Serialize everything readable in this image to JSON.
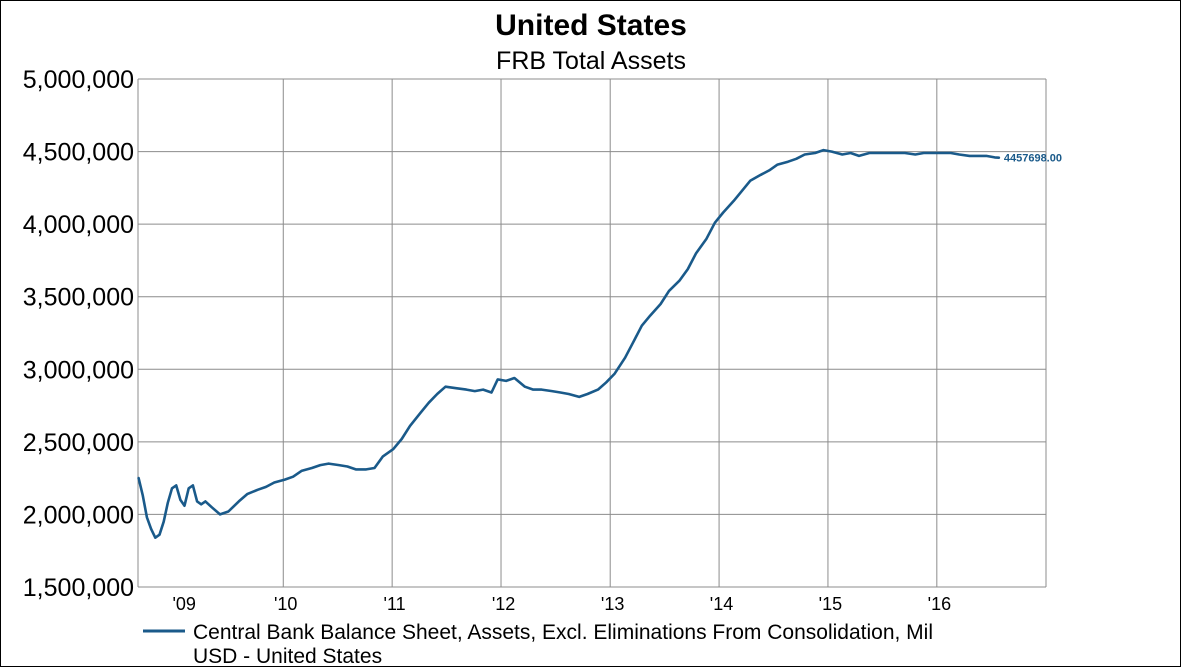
{
  "chart_data": {
    "type": "line",
    "title": "United States",
    "subtitle": "FRB Total Assets",
    "ylim": [
      1500000,
      5000000
    ],
    "y_ticks": [
      "5,000,000",
      "4,500,000",
      "4,000,000",
      "3,500,000",
      "3,000,000",
      "2,500,000",
      "2,000,000",
      "1,500,000"
    ],
    "xlim": [
      "2008-09-01",
      "2017-01-01"
    ],
    "x_ticks": [
      {
        "label": "'09",
        "date": "2009-01-01"
      },
      {
        "label": "'10",
        "date": "2010-01-01"
      },
      {
        "label": "'11",
        "date": "2011-01-01"
      },
      {
        "label": "'12",
        "date": "2012-01-01"
      },
      {
        "label": "'13",
        "date": "2013-01-01"
      },
      {
        "label": "'14",
        "date": "2014-01-01"
      },
      {
        "label": "'15",
        "date": "2015-01-01"
      },
      {
        "label": "'16",
        "date": "2016-01-01"
      }
    ],
    "grid": true,
    "legend_position": "bottom",
    "series": [
      {
        "name": "Central Bank Balance Sheet, Assets, Excl. Eliminations From Consolidation, Mil USD - United States",
        "color": "#1a5a8a",
        "last_value_label": "4457698.00",
        "points": [
          [
            "2008-09-03",
            2250000
          ],
          [
            "2008-09-17",
            2130000
          ],
          [
            "2008-10-01",
            1980000
          ],
          [
            "2008-10-15",
            1900000
          ],
          [
            "2008-10-29",
            1840000
          ],
          [
            "2008-11-12",
            1860000
          ],
          [
            "2008-11-26",
            1950000
          ],
          [
            "2008-12-10",
            2080000
          ],
          [
            "2008-12-24",
            2180000
          ],
          [
            "2009-01-07",
            2200000
          ],
          [
            "2009-01-21",
            2100000
          ],
          [
            "2009-02-04",
            2060000
          ],
          [
            "2009-02-18",
            2180000
          ],
          [
            "2009-03-04",
            2200000
          ],
          [
            "2009-03-18",
            2090000
          ],
          [
            "2009-04-01",
            2070000
          ],
          [
            "2009-04-15",
            2090000
          ],
          [
            "2009-05-06",
            2050000
          ],
          [
            "2009-06-03",
            2000000
          ],
          [
            "2009-07-01",
            2020000
          ],
          [
            "2009-08-05",
            2090000
          ],
          [
            "2009-09-02",
            2140000
          ],
          [
            "2009-10-07",
            2170000
          ],
          [
            "2009-11-04",
            2190000
          ],
          [
            "2009-12-02",
            2220000
          ],
          [
            "2010-01-06",
            2240000
          ],
          [
            "2010-02-03",
            2260000
          ],
          [
            "2010-03-03",
            2300000
          ],
          [
            "2010-04-07",
            2320000
          ],
          [
            "2010-05-05",
            2340000
          ],
          [
            "2010-06-02",
            2350000
          ],
          [
            "2010-07-07",
            2340000
          ],
          [
            "2010-08-04",
            2330000
          ],
          [
            "2010-09-01",
            2310000
          ],
          [
            "2010-10-06",
            2310000
          ],
          [
            "2010-11-03",
            2320000
          ],
          [
            "2010-12-01",
            2400000
          ],
          [
            "2011-01-05",
            2450000
          ],
          [
            "2011-02-02",
            2520000
          ],
          [
            "2011-03-02",
            2610000
          ],
          [
            "2011-04-06",
            2700000
          ],
          [
            "2011-05-04",
            2770000
          ],
          [
            "2011-06-01",
            2830000
          ],
          [
            "2011-06-29",
            2880000
          ],
          [
            "2011-08-03",
            2870000
          ],
          [
            "2011-09-07",
            2860000
          ],
          [
            "2011-10-05",
            2850000
          ],
          [
            "2011-11-02",
            2860000
          ],
          [
            "2011-11-30",
            2840000
          ],
          [
            "2011-12-21",
            2930000
          ],
          [
            "2012-01-18",
            2920000
          ],
          [
            "2012-02-15",
            2940000
          ],
          [
            "2012-03-21",
            2880000
          ],
          [
            "2012-04-18",
            2860000
          ],
          [
            "2012-05-16",
            2860000
          ],
          [
            "2012-06-20",
            2850000
          ],
          [
            "2012-07-18",
            2840000
          ],
          [
            "2012-08-15",
            2830000
          ],
          [
            "2012-09-19",
            2810000
          ],
          [
            "2012-10-17",
            2830000
          ],
          [
            "2012-11-21",
            2860000
          ],
          [
            "2012-12-19",
            2910000
          ],
          [
            "2013-01-16",
            2970000
          ],
          [
            "2013-02-20",
            3080000
          ],
          [
            "2013-03-20",
            3190000
          ],
          [
            "2013-04-17",
            3300000
          ],
          [
            "2013-05-15",
            3370000
          ],
          [
            "2013-06-19",
            3450000
          ],
          [
            "2013-07-17",
            3540000
          ],
          [
            "2013-08-21",
            3610000
          ],
          [
            "2013-09-18",
            3690000
          ],
          [
            "2013-10-16",
            3800000
          ],
          [
            "2013-11-20",
            3900000
          ],
          [
            "2013-12-18",
            4010000
          ],
          [
            "2014-01-15",
            4080000
          ],
          [
            "2014-02-19",
            4160000
          ],
          [
            "2014-03-19",
            4230000
          ],
          [
            "2014-04-16",
            4300000
          ],
          [
            "2014-05-21",
            4340000
          ],
          [
            "2014-06-18",
            4370000
          ],
          [
            "2014-07-16",
            4410000
          ],
          [
            "2014-08-20",
            4430000
          ],
          [
            "2014-09-17",
            4450000
          ],
          [
            "2014-10-15",
            4480000
          ],
          [
            "2014-11-19",
            4490000
          ],
          [
            "2014-12-17",
            4510000
          ],
          [
            "2015-01-14",
            4500000
          ],
          [
            "2015-02-18",
            4480000
          ],
          [
            "2015-03-18",
            4490000
          ],
          [
            "2015-04-15",
            4470000
          ],
          [
            "2015-05-20",
            4490000
          ],
          [
            "2015-06-17",
            4490000
          ],
          [
            "2015-07-15",
            4490000
          ],
          [
            "2015-08-19",
            4490000
          ],
          [
            "2015-09-16",
            4490000
          ],
          [
            "2015-10-21",
            4480000
          ],
          [
            "2015-11-18",
            4490000
          ],
          [
            "2015-12-16",
            4490000
          ],
          [
            "2016-01-20",
            4490000
          ],
          [
            "2016-02-17",
            4490000
          ],
          [
            "2016-03-16",
            4480000
          ],
          [
            "2016-04-20",
            4470000
          ],
          [
            "2016-05-18",
            4470000
          ],
          [
            "2016-06-15",
            4470000
          ],
          [
            "2016-07-13",
            4460000
          ],
          [
            "2016-07-27",
            4457698
          ]
        ]
      }
    ]
  }
}
